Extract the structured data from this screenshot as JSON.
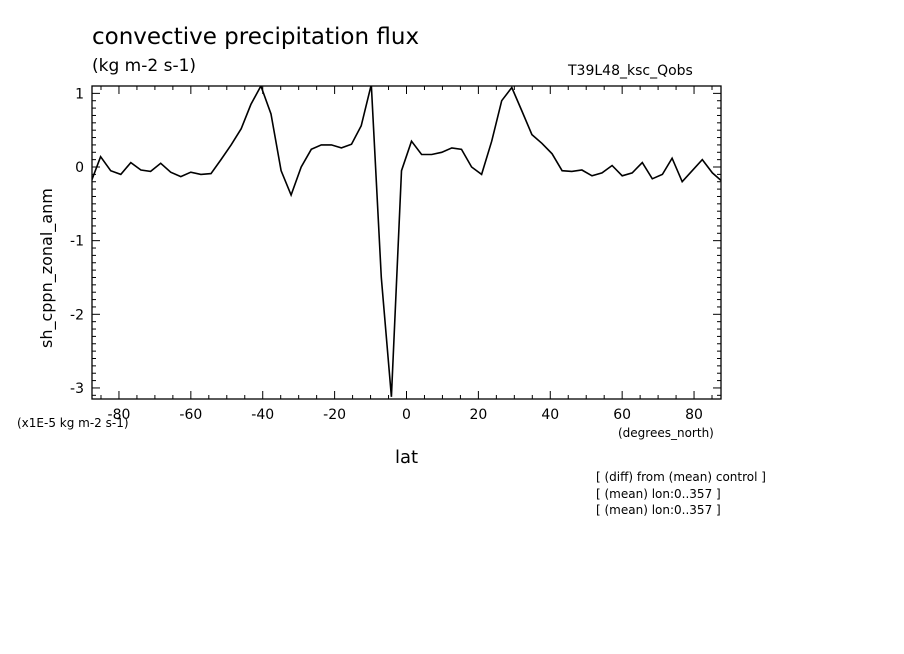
{
  "header": {
    "title": "convective precipitation flux",
    "subtitle": "(kg m-2 s-1)",
    "run_name": "T39L48_ksc_Qobs"
  },
  "footer": {
    "scale_note": "(x1E-5 kg m-2 s-1)",
    "x_units": "(degrees_north)",
    "notes": [
      "[ (diff) from (mean) control ]",
      "[ (mean) lon:0..357 ]",
      "[ (mean) lon:0..357 ]"
    ]
  },
  "chart_data": {
    "type": "line",
    "xlabel": "lat",
    "ylabel": "sh_cppn_zonal_anm",
    "xlim": [
      -87.5,
      87.5
    ],
    "ylim": [
      -3.15,
      1.1
    ],
    "x_ticks": [
      -80,
      -60,
      -40,
      -20,
      0,
      20,
      40,
      60,
      80
    ],
    "x_tick_labels": [
      "-80",
      "-60",
      "-40",
      "-20",
      "0",
      "20",
      "40",
      "60",
      "80"
    ],
    "y_ticks": [
      -3,
      -2,
      -1,
      0,
      1
    ],
    "y_tick_labels": [
      "-3",
      "-2",
      "-1",
      "0",
      "1"
    ],
    "grid": false,
    "line_color": "#000000",
    "series": [
      {
        "x": [
          -87.9,
          -85.1,
          -82.3,
          -79.5,
          -76.7,
          -73.9,
          -71.2,
          -68.4,
          -65.6,
          -62.8,
          -60.0,
          -57.2,
          -54.4,
          -51.6,
          -48.8,
          -46.0,
          -43.3,
          -40.5,
          -37.7,
          -34.9,
          -32.1,
          -29.3,
          -26.5,
          -23.7,
          -20.9,
          -18.1,
          -15.3,
          -12.6,
          -9.8,
          -7.0,
          -4.2,
          -1.4,
          1.4,
          4.2,
          7.0,
          9.8,
          12.6,
          15.3,
          18.1,
          20.9,
          23.7,
          26.5,
          29.3,
          32.1,
          34.9,
          37.7,
          40.5,
          43.3,
          46.0,
          48.8,
          51.6,
          54.4,
          57.2,
          60.0,
          62.8,
          65.6,
          68.4,
          71.2,
          73.9,
          76.7,
          79.5,
          82.3,
          85.1,
          87.9
        ],
        "values": [
          -0.22,
          0.14,
          -0.05,
          -0.1,
          0.06,
          -0.04,
          -0.06,
          0.05,
          -0.07,
          -0.13,
          -0.07,
          -0.1,
          -0.09,
          0.1,
          0.3,
          0.52,
          0.85,
          1.1,
          0.72,
          -0.05,
          -0.38,
          0.0,
          0.24,
          0.3,
          0.3,
          0.26,
          0.31,
          0.56,
          1.12,
          -1.5,
          -3.12,
          -0.05,
          0.35,
          0.17,
          0.17,
          0.2,
          0.26,
          0.24,
          0.0,
          -0.1,
          0.35,
          0.9,
          1.08,
          0.76,
          0.44,
          0.32,
          0.18,
          -0.05,
          -0.06,
          -0.04,
          -0.12,
          -0.08,
          0.02,
          -0.12,
          -0.08,
          0.06,
          -0.16,
          -0.1,
          0.12,
          -0.2,
          -0.05,
          0.1,
          -0.08,
          -0.2
        ]
      }
    ]
  }
}
